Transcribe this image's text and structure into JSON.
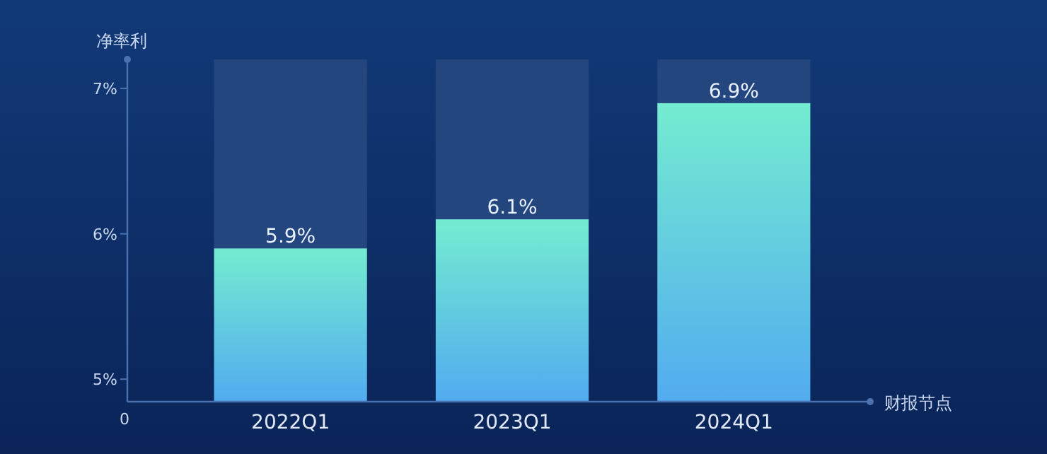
{
  "chart_data": {
    "type": "bar",
    "ylabel": "净率利",
    "xlabel": "财报节点",
    "stacked": true,
    "categories": [
      "2022Q1",
      "2023Q1",
      "2024Q1"
    ],
    "series": [
      {
        "color": "#74ecd0",
        "values": [
          5.9,
          6.1,
          6.9
        ],
        "value_labels": [
          "5.9%",
          "6.1%",
          "6.9%"
        ]
      },
      {
        "color": "#24467e",
        "base": [
          5.9,
          6.1,
          6.9
        ],
        "values": [
          1.3,
          1.1,
          0.3
        ]
      }
    ],
    "ylim": [
      4.845,
      7.2
    ],
    "yticks": [
      {
        "value": 5,
        "label": "5%"
      },
      {
        "value": 6,
        "label": "6%"
      },
      {
        "value": 7,
        "label": "7%"
      }
    ],
    "annotations": [
      "0"
    ],
    "grid": false
  }
}
